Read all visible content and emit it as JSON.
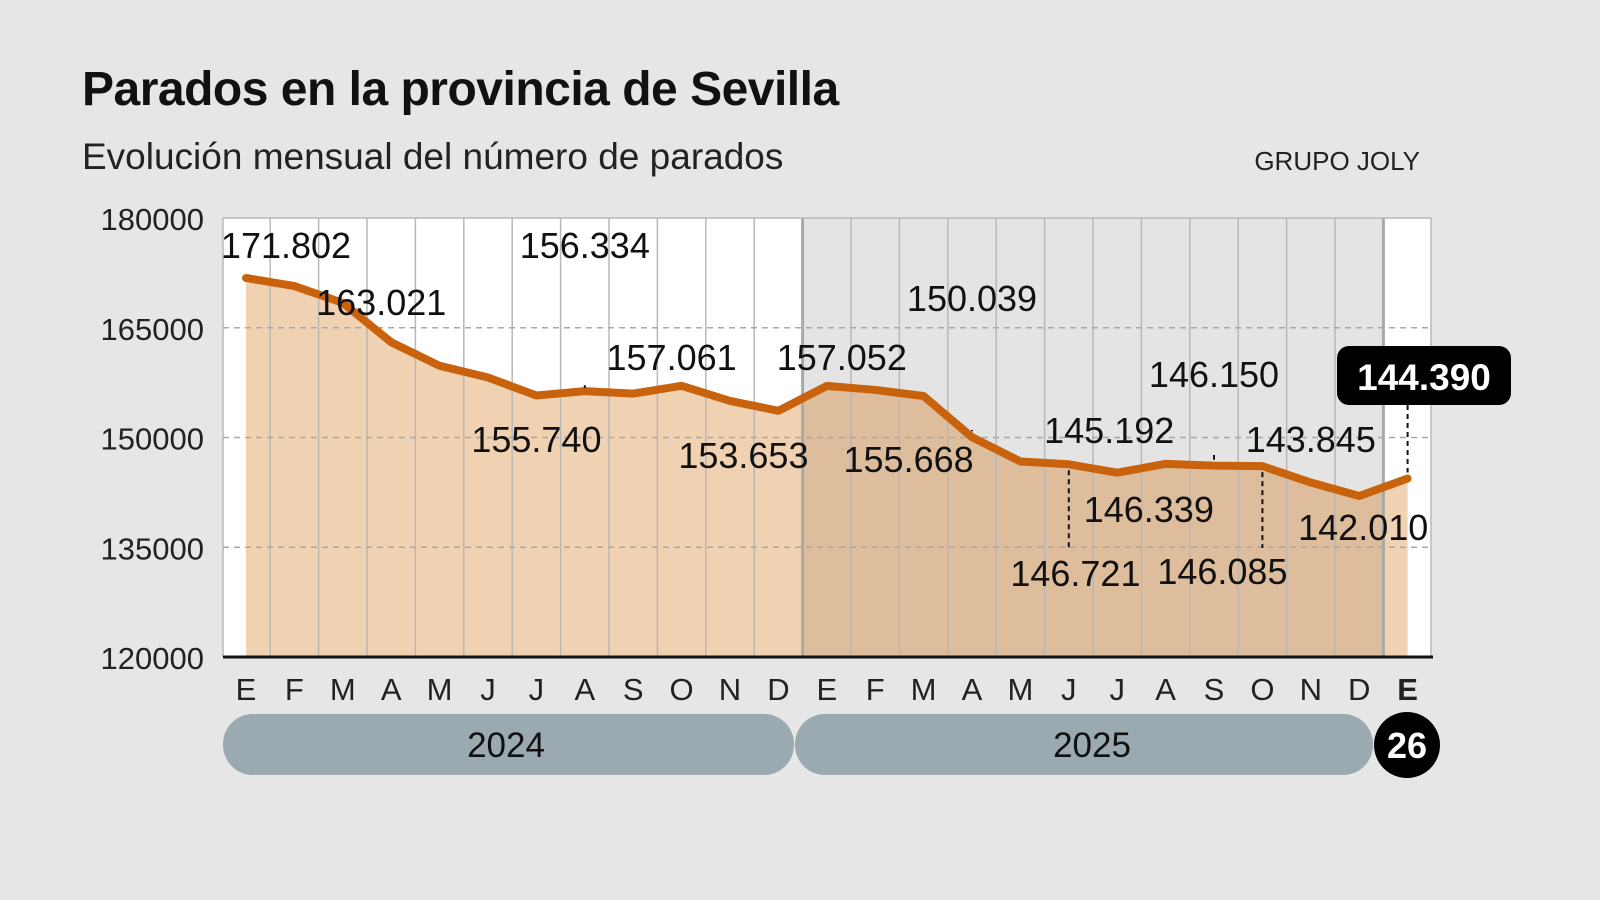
{
  "title": "Parados en la provincia de Sevilla",
  "subtitle": "Evolución mensual del número de parados",
  "source": "GRUPO JOLY",
  "colors": {
    "line": "#c9620c",
    "fill_2024": "#f0d2b2",
    "fill_2025": "#ddbd9c",
    "bg_2025": "#e4e4e4",
    "year_bar": "#9aaab0",
    "highlight": "#000000"
  },
  "chart_data": {
    "type": "area",
    "title": "Parados en la provincia de Sevilla",
    "subtitle": "Evolución mensual del número de parados",
    "ylim": [
      120000,
      180000
    ],
    "yticks": [
      120000,
      135000,
      150000,
      165000,
      180000
    ],
    "ytick_labels": [
      "120000",
      "135000",
      "150000",
      "165000",
      "180000"
    ],
    "grid": true,
    "months": [
      "E",
      "F",
      "M",
      "A",
      "M",
      "J",
      "J",
      "A",
      "S",
      "O",
      "N",
      "D",
      "E",
      "F",
      "M",
      "A",
      "M",
      "J",
      "J",
      "A",
      "S",
      "O",
      "N",
      "D",
      "E"
    ],
    "years": [
      {
        "label": "2024",
        "months": 12
      },
      {
        "label": "2025",
        "months": 12
      },
      {
        "label": "26",
        "months": 1
      }
    ],
    "values": [
      171802,
      170700,
      168400,
      163021,
      159800,
      158200,
      155740,
      156334,
      156000,
      157061,
      155000,
      153653,
      157052,
      156500,
      155668,
      150039,
      146721,
      146339,
      145192,
      146400,
      146150,
      146085,
      143845,
      142010,
      144390
    ],
    "data_labels": [
      {
        "index": 0,
        "text": "171.802"
      },
      {
        "index": 3,
        "text": "163.021"
      },
      {
        "index": 6,
        "text": "155.740"
      },
      {
        "index": 7,
        "text": "156.334"
      },
      {
        "index": 9,
        "text": "157.061"
      },
      {
        "index": 11,
        "text": "153.653"
      },
      {
        "index": 12,
        "text": "157.052"
      },
      {
        "index": 14,
        "text": "155.668"
      },
      {
        "index": 15,
        "text": "150.039"
      },
      {
        "index": 16,
        "text": "146.721"
      },
      {
        "index": 17,
        "text": "146.339"
      },
      {
        "index": 18,
        "text": "145.192"
      },
      {
        "index": 20,
        "text": "146.150"
      },
      {
        "index": 21,
        "text": "146.085"
      },
      {
        "index": 22,
        "text": "143.845"
      },
      {
        "index": 23,
        "text": "142.010"
      },
      {
        "index": 24,
        "text": "144.390"
      }
    ]
  }
}
